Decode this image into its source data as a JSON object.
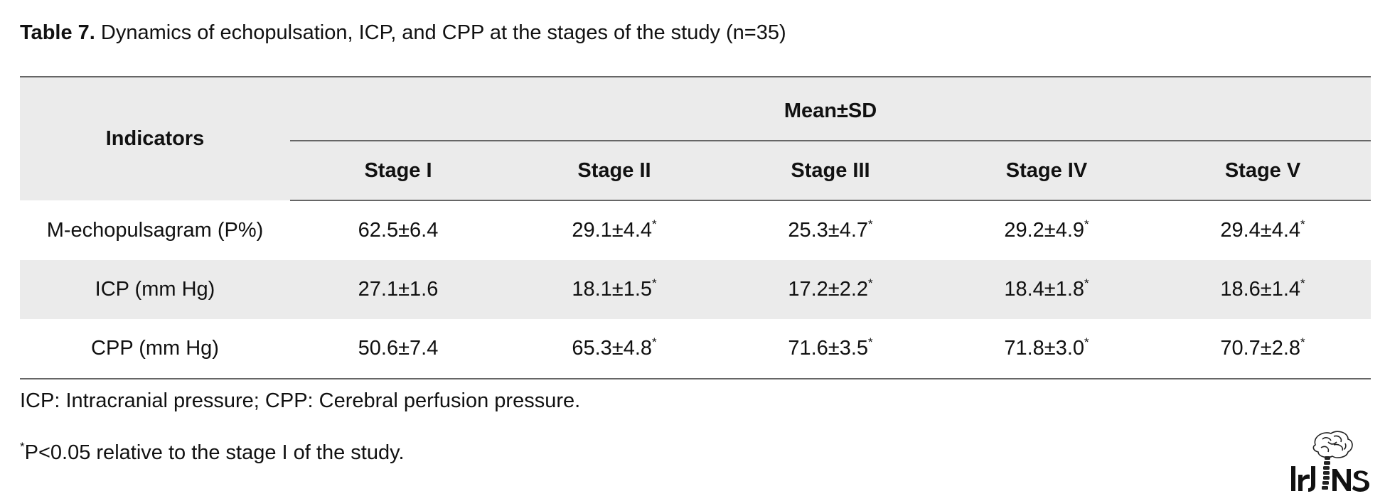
{
  "caption": {
    "label": "Table 7.",
    "text": " Dynamics of echopulsation, ICP, and CPP at the stages of the study (n=35)"
  },
  "table": {
    "row_header": "Indicators",
    "group_header": "Mean±SD",
    "stages": [
      "Stage I",
      "Stage II",
      "Stage III",
      "Stage IV",
      "Stage V"
    ],
    "rows": [
      {
        "indicator": "M-echopulsagram (P%)",
        "values": [
          {
            "v": "62.5±6.4",
            "sup": ""
          },
          {
            "v": "29.1±4.4",
            "sup": "*"
          },
          {
            "v": "25.3±4.7",
            "sup": "*"
          },
          {
            "v": "29.2±4.9",
            "sup": "*"
          },
          {
            "v": "29.4±4.4",
            "sup": "*"
          }
        ]
      },
      {
        "indicator": "ICP (mm Hg)",
        "values": [
          {
            "v": "27.1±1.6",
            "sup": ""
          },
          {
            "v": "18.1±1.5",
            "sup": "*"
          },
          {
            "v": "17.2±2.2",
            "sup": "*"
          },
          {
            "v": "18.4±1.8",
            "sup": "*"
          },
          {
            "v": "18.6±1.4",
            "sup": "*"
          }
        ]
      },
      {
        "indicator": "CPP (mm Hg)",
        "values": [
          {
            "v": "50.6±7.4",
            "sup": ""
          },
          {
            "v": "65.3±4.8",
            "sup": "*"
          },
          {
            "v": "71.6±3.5",
            "sup": "*"
          },
          {
            "v": "71.8±3.0",
            "sup": "*"
          },
          {
            "v": "70.7±2.8",
            "sup": "*"
          }
        ]
      }
    ]
  },
  "notes": {
    "abbreviations": "ICP: Intracranial pressure; CPP: Cerebral perfusion pressure.",
    "significance_mark": "*",
    "significance_text": "P<0.05 relative to the stage I of the study."
  },
  "logo": {
    "text": "IrJNS",
    "icon": "brain-spine-logo-icon"
  },
  "colors": {
    "header_shade": "#ebebeb",
    "rule": "#666666",
    "text": "#111111"
  }
}
